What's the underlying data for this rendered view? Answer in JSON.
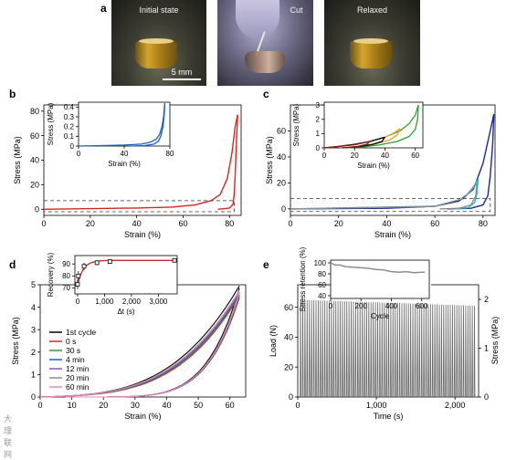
{
  "panels": {
    "a": {
      "letter": "a",
      "photos": [
        {
          "label": "Initial state"
        },
        {
          "label": "Cut"
        },
        {
          "label": "Relaxed"
        }
      ],
      "scale_bar_label": "5 mm"
    },
    "b": {
      "letter": "b"
    },
    "c": {
      "letter": "c"
    },
    "d": {
      "letter": "d"
    },
    "e": {
      "letter": "e"
    }
  },
  "watermark": "大理联网",
  "colors": {
    "red": "#d7261e",
    "blue": "#1f5fc6",
    "navy": "#1c2a8a",
    "green": "#2ca02c",
    "orange": "#f0a020",
    "cyan": "#18c0d8",
    "black": "#000000",
    "gray": "#8c8c8c",
    "purple": "#8a52c8",
    "pink": "#ec86b5",
    "dark_red": "#8b1a1a"
  },
  "chart_data": [
    {
      "id": "b-main",
      "type": "line",
      "xlabel": "Strain (%)",
      "ylabel": "Stress (MPa)",
      "xlim": [
        0,
        85
      ],
      "ylim": [
        -5,
        85
      ],
      "xticks": [
        0,
        20,
        40,
        60,
        80
      ],
      "yticks": [
        0,
        20,
        40,
        60,
        80
      ],
      "hysteresis": [
        {
          "color": "red",
          "load": [
            [
              0,
              0
            ],
            [
              20,
              0.5
            ],
            [
              40,
              1
            ],
            [
              55,
              1.8
            ],
            [
              65,
              3.5
            ],
            [
              72,
              7
            ],
            [
              76,
              12
            ],
            [
              79,
              25
            ],
            [
              81,
              45
            ],
            [
              82.5,
              68
            ],
            [
              83.5,
              77
            ]
          ],
          "unload": [
            [
              83.5,
              77
            ],
            [
              83,
              55
            ],
            [
              82.5,
              30
            ],
            [
              82,
              12
            ],
            [
              81.5,
              4
            ],
            [
              80,
              1
            ],
            [
              75,
              0
            ]
          ]
        }
      ],
      "dashed_box": {
        "y": [
          -2,
          7
        ],
        "x": [
          0,
          82
        ]
      }
    },
    {
      "id": "b-inset",
      "type": "line",
      "xlabel": "Strain (%)",
      "ylabel": "Stress (MPa)",
      "xlim": [
        0,
        80
      ],
      "ylim": [
        0,
        0.45
      ],
      "xticks": [
        0,
        40,
        80
      ],
      "yticks": [
        0,
        0.1,
        0.2,
        0.3,
        0.4
      ],
      "hysteresis": [
        {
          "color": "blue",
          "load": [
            [
              0,
              0
            ],
            [
              20,
              0.005
            ],
            [
              40,
              0.01
            ],
            [
              55,
              0.02
            ],
            [
              63,
              0.04
            ],
            [
              68,
              0.07
            ],
            [
              71,
              0.12
            ],
            [
              73,
              0.2
            ],
            [
              74.5,
              0.3
            ],
            [
              75.5,
              0.44
            ]
          ],
          "unload": [
            [
              75.5,
              0.44
            ],
            [
              75,
              0.32
            ],
            [
              74,
              0.2
            ],
            [
              72,
              0.1
            ],
            [
              70,
              0.05
            ],
            [
              66,
              0.02
            ],
            [
              58,
              0.005
            ],
            [
              45,
              0
            ]
          ]
        }
      ]
    },
    {
      "id": "c-main",
      "type": "line",
      "xlabel": "Strain (%)",
      "ylabel": "Stress (MPa)",
      "xlim": [
        0,
        85
      ],
      "ylim": [
        -5,
        80
      ],
      "xticks": [
        0,
        20,
        40,
        60,
        80
      ],
      "yticks": [
        0,
        20,
        40,
        60
      ],
      "hysteresis": [
        {
          "color": "navy",
          "load": [
            [
              0,
              0
            ],
            [
              40,
              0.5
            ],
            [
              60,
              2
            ],
            [
              70,
              6
            ],
            [
              76,
              15
            ],
            [
              80,
              35
            ],
            [
              83,
              60
            ],
            [
              84.5,
              73
            ]
          ],
          "unload": [
            [
              84.5,
              73
            ],
            [
              84,
              50
            ],
            [
              83,
              25
            ],
            [
              82,
              10
            ],
            [
              80,
              3
            ],
            [
              75,
              0.5
            ],
            [
              65,
              0
            ]
          ]
        },
        {
          "color": "cyan",
          "load": [
            [
              0,
              0
            ],
            [
              60,
              2
            ],
            [
              72,
              8
            ],
            [
              76,
              17
            ],
            [
              78,
              23
            ]
          ],
          "unload": [
            [
              78,
              23
            ],
            [
              77.5,
              12
            ],
            [
              76.5,
              5
            ],
            [
              74,
              1
            ],
            [
              68,
              0
            ]
          ]
        },
        {
          "color": "gray",
          "load": [
            [
              0,
              0
            ],
            [
              60,
              2
            ],
            [
              72,
              8
            ],
            [
              76,
              16
            ],
            [
              77.5,
              20
            ]
          ],
          "unload": [
            [
              77.5,
              20
            ],
            [
              77,
              10
            ],
            [
              75,
              3
            ],
            [
              70,
              0.5
            ],
            [
              62,
              0
            ]
          ]
        }
      ],
      "dashed_box": {
        "y": [
          -2,
          8
        ],
        "x": [
          0,
          83
        ]
      }
    },
    {
      "id": "c-inset",
      "type": "line",
      "xlabel": "Strain (%)",
      "ylabel": "Stress (MPa)",
      "xlim": [
        0,
        65
      ],
      "ylim": [
        0,
        3.2
      ],
      "xticks": [
        0,
        20,
        40,
        60
      ],
      "yticks": [
        0,
        1,
        2,
        3
      ],
      "hysteresis": [
        {
          "color": "green",
          "load": [
            [
              0,
              0
            ],
            [
              10,
              0.1
            ],
            [
              20,
              0.25
            ],
            [
              30,
              0.45
            ],
            [
              40,
              0.75
            ],
            [
              50,
              1.2
            ],
            [
              56,
              1.7
            ],
            [
              60,
              2.3
            ],
            [
              62,
              3.0
            ]
          ],
          "unload": [
            [
              62,
              3.0
            ],
            [
              61.5,
              2.0
            ],
            [
              60,
              1.3
            ],
            [
              56,
              0.8
            ],
            [
              48,
              0.45
            ],
            [
              36,
              0.2
            ],
            [
              24,
              0.05
            ],
            [
              12,
              0
            ]
          ]
        },
        {
          "color": "orange",
          "load": [
            [
              0,
              0
            ],
            [
              10,
              0.1
            ],
            [
              20,
              0.25
            ],
            [
              30,
              0.45
            ],
            [
              40,
              0.75
            ],
            [
              46,
              1.05
            ],
            [
              50,
              1.35
            ]
          ],
          "unload": [
            [
              50,
              1.35
            ],
            [
              48,
              0.9
            ],
            [
              43,
              0.55
            ],
            [
              35,
              0.3
            ],
            [
              25,
              0.12
            ],
            [
              15,
              0
            ]
          ]
        },
        {
          "color": "black",
          "load": [
            [
              0,
              0
            ],
            [
              10,
              0.1
            ],
            [
              20,
              0.25
            ],
            [
              30,
              0.45
            ],
            [
              37,
              0.65
            ],
            [
              40,
              0.75
            ]
          ],
          "unload": [
            [
              40,
              0.75
            ],
            [
              38,
              0.45
            ],
            [
              32,
              0.25
            ],
            [
              22,
              0.08
            ],
            [
              12,
              0
            ]
          ]
        },
        {
          "color": "dark_red",
          "load": [
            [
              0,
              0
            ],
            [
              10,
              0.1
            ],
            [
              20,
              0.22
            ],
            [
              26,
              0.35
            ],
            [
              30,
              0.45
            ]
          ],
          "unload": [
            [
              30,
              0.45
            ],
            [
              28,
              0.25
            ],
            [
              22,
              0.1
            ],
            [
              12,
              0
            ]
          ]
        }
      ]
    },
    {
      "id": "d-main",
      "type": "line",
      "xlabel": "Strain (%)",
      "ylabel": "Stress (MPa)",
      "xlim": [
        0,
        65
      ],
      "ylim": [
        0,
        5
      ],
      "xticks": [
        0,
        10,
        20,
        30,
        40,
        50,
        60
      ],
      "yticks": [
        0,
        1,
        2,
        3,
        4,
        5
      ],
      "series": [
        {
          "name": "1st cycle",
          "color": "black",
          "peak": 4.95,
          "k": 1.0
        },
        {
          "name": "0 s",
          "color": "red",
          "peak": 4.5,
          "k": 1.08
        },
        {
          "name": "30 s",
          "color": "green",
          "peak": 4.55,
          "k": 1.06
        },
        {
          "name": "4 min",
          "color": "blue",
          "peak": 4.6,
          "k": 1.04
        },
        {
          "name": "12 min",
          "color": "purple",
          "peak": 4.65,
          "k": 1.03
        },
        {
          "name": "20 min",
          "color": "gray",
          "peak": 4.7,
          "k": 1.02
        },
        {
          "name": "60 min",
          "color": "pink",
          "peak": 4.75,
          "k": 1.01
        }
      ],
      "legend_position": "top-left"
    },
    {
      "id": "d-inset",
      "type": "scatter",
      "xlabel": "Δt (s)",
      "ylabel": "Recovery (%)",
      "xlim": [
        -100,
        3700
      ],
      "ylim": [
        65,
        97
      ],
      "xticks": [
        0,
        1000,
        2000,
        3000
      ],
      "xtick_labels": [
        "0",
        "1,000",
        "2,000",
        "3,000"
      ],
      "yticks": [
        70,
        80,
        90
      ],
      "points": [
        {
          "x": 0,
          "y": 73,
          "err": 4
        },
        {
          "x": 30,
          "y": 80,
          "err": 4
        },
        {
          "x": 240,
          "y": 88,
          "err": 3
        },
        {
          "x": 720,
          "y": 91,
          "err": 2
        },
        {
          "x": 1200,
          "y": 92,
          "err": 1.5
        },
        {
          "x": 3600,
          "y": 93,
          "err": 1
        }
      ],
      "fit_color": "red"
    },
    {
      "id": "e-main",
      "type": "line",
      "xlabel": "Time (s)",
      "ylabel": "Load (N)",
      "ylabel_right": "Stress (MPa)",
      "xlim": [
        0,
        2300
      ],
      "ylim": [
        0,
        75
      ],
      "xticks": [
        0,
        1000,
        2000
      ],
      "xtick_labels": [
        "0",
        "1,000",
        "2,000"
      ],
      "yticks": [
        0,
        20,
        40,
        60
      ],
      "y2lim": [
        0,
        2.3
      ],
      "y2ticks": [
        0,
        1,
        2
      ],
      "cycles": 80,
      "peak_start": 65,
      "peak_end": 61
    },
    {
      "id": "e-inset",
      "type": "line",
      "xlabel": "Cycle",
      "ylabel": "Stress retention (%)",
      "xlim": [
        0,
        650
      ],
      "ylim": [
        35,
        105
      ],
      "xticks": [
        0,
        200,
        400,
        600
      ],
      "yticks": [
        40,
        60,
        80,
        100
      ],
      "x": [
        0,
        30,
        60,
        100,
        150,
        200,
        250,
        300,
        350,
        400,
        450,
        500,
        550,
        600,
        620
      ],
      "y": [
        100,
        96,
        96,
        93,
        92,
        91,
        90,
        88,
        87,
        84,
        83,
        84,
        82,
        83,
        83
      ]
    }
  ]
}
